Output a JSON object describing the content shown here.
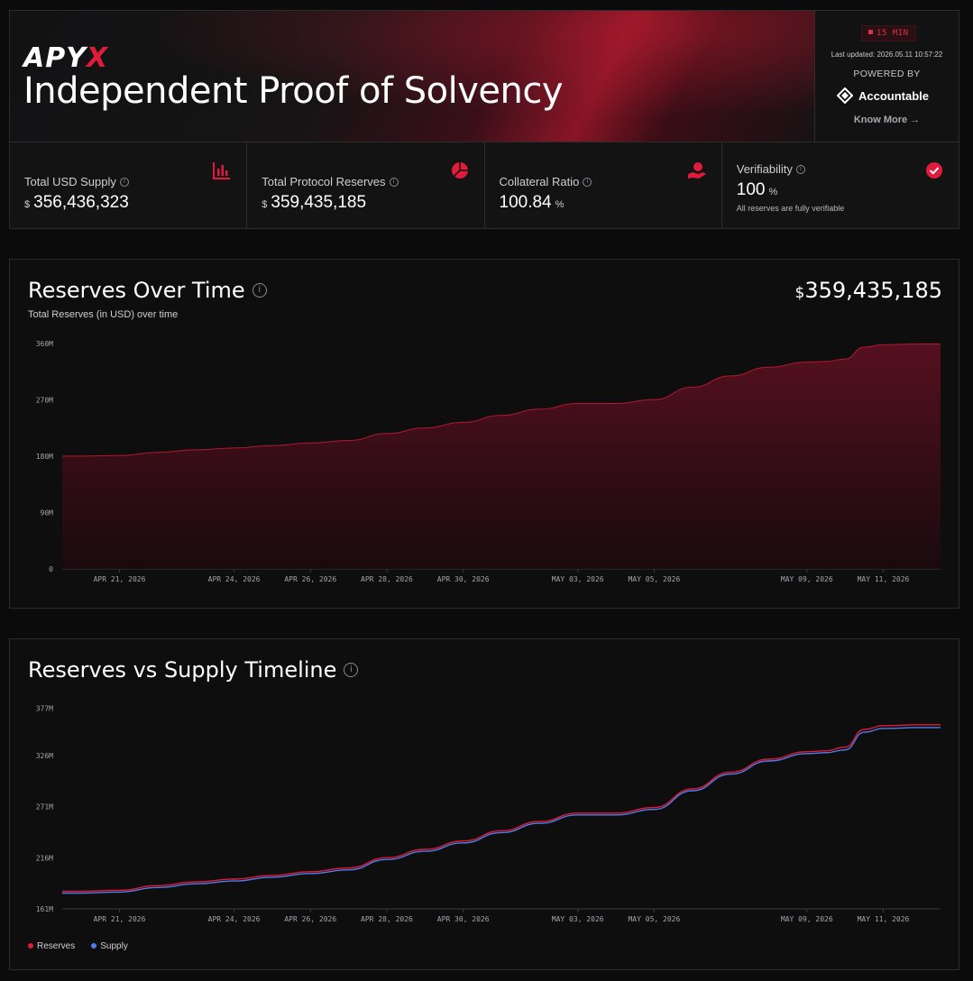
{
  "header": {
    "logo_text_main": "APY",
    "logo_text_accent": "X",
    "title": "Independent Proof of Solvency",
    "badge": "15 MIN",
    "last_updated": "Last updated: 2026.05.11 10:57:22",
    "powered_by": "POWERED BY",
    "partner": "Accountable",
    "know_more": "Know More →",
    "accent_color": "#e01b3c"
  },
  "stats": [
    {
      "label": "Total USD Supply",
      "prefix": "$",
      "value": "356,436,323",
      "suffix": "",
      "icon": "bar-chart-icon"
    },
    {
      "label": "Total Protocol Reserves",
      "prefix": "$",
      "value": "359,435,185",
      "suffix": "",
      "icon": "pie-chart-icon"
    },
    {
      "label": "Collateral Ratio",
      "prefix": "",
      "value": "100.84",
      "suffix": "%",
      "icon": "hand-coin-icon"
    },
    {
      "label": "Verifiability",
      "prefix": "",
      "value": "100",
      "suffix": "%",
      "sub": "All reserves are fully verifiable",
      "icon": "verified-badge-icon"
    }
  ],
  "reserves_card": {
    "title": "Reserves Over Time",
    "subtitle": "Total Reserves (in USD) over time",
    "current_prefix": "$",
    "current_value": "359,435,185"
  },
  "timeline_card": {
    "title": "Reserves vs Supply Timeline",
    "legend": [
      {
        "name": "Reserves",
        "color": "#e01b3c"
      },
      {
        "name": "Supply",
        "color": "#4f7fe6"
      }
    ]
  },
  "chart_data": [
    {
      "type": "area",
      "title": "Reserves Over Time",
      "x_ticks": [
        "APR 21, 2026",
        "APR 24, 2026",
        "APR 26, 2026",
        "APR 28, 2026",
        "APR 30, 2026",
        "MAY 03, 2026",
        "MAY 05, 2026",
        "MAY 09, 2026",
        "MAY 11, 2026"
      ],
      "x_tick_days": [
        21,
        24,
        26,
        28,
        30,
        33,
        35,
        39,
        41
      ],
      "y_ticks": [
        "0",
        "90M",
        "180M",
        "270M",
        "360M"
      ],
      "y_tick_values": [
        0,
        90,
        180,
        270,
        360
      ],
      "ylim": [
        0,
        364
      ],
      "xlim": [
        19.5,
        42.5
      ],
      "series": [
        {
          "name": "Reserves",
          "x": [
            19.5,
            20,
            21,
            22,
            23,
            24,
            25,
            26,
            27,
            28,
            29,
            30,
            31,
            32,
            33,
            34,
            35,
            36,
            37,
            38,
            39,
            39.5,
            40,
            40.5,
            41,
            42,
            42.5
          ],
          "y": [
            180,
            180,
            181,
            186,
            190,
            193,
            197,
            201,
            205,
            216,
            225,
            234,
            245,
            255,
            264,
            264,
            270,
            290,
            308,
            322,
            330,
            331,
            335,
            354,
            358,
            359,
            359
          ]
        }
      ]
    },
    {
      "type": "line",
      "title": "Reserves vs Supply Timeline",
      "x_ticks": [
        "APR 21, 2026",
        "APR 24, 2026",
        "APR 26, 2026",
        "APR 28, 2026",
        "APR 30, 2026",
        "MAY 03, 2026",
        "MAY 05, 2026",
        "MAY 09, 2026",
        "MAY 11, 2026"
      ],
      "x_tick_days": [
        21,
        24,
        26,
        28,
        30,
        33,
        35,
        39,
        41
      ],
      "y_ticks": [
        "161M",
        "216M",
        "271M",
        "326M",
        "377M"
      ],
      "y_tick_values": [
        161,
        216,
        271,
        326,
        377
      ],
      "ylim": [
        161,
        385
      ],
      "xlim": [
        19.5,
        42.5
      ],
      "series": [
        {
          "name": "Reserves",
          "x": [
            19.5,
            20,
            21,
            22,
            23,
            24,
            25,
            26,
            27,
            28,
            29,
            30,
            31,
            32,
            33,
            34,
            35,
            36,
            37,
            38,
            39,
            39.5,
            40,
            40.5,
            41,
            42,
            42.5
          ],
          "y": [
            180,
            180,
            181,
            186,
            190,
            193,
            197,
            201,
            205,
            216,
            225,
            234,
            245,
            255,
            264,
            264,
            270,
            290,
            308,
            322,
            330,
            331,
            335,
            354,
            358,
            359,
            359
          ]
        },
        {
          "name": "Supply",
          "x": [
            19.5,
            20,
            21,
            22,
            23,
            24,
            25,
            26,
            27,
            28,
            29,
            30,
            31,
            32,
            33,
            34,
            35,
            36,
            37,
            38,
            39,
            39.5,
            40,
            40.5,
            41,
            42,
            42.5
          ],
          "y": [
            178,
            178,
            179,
            184,
            188,
            191,
            195,
            199,
            203,
            214,
            223,
            232,
            243,
            253,
            262,
            262,
            268,
            288,
            306,
            320,
            328,
            329,
            332,
            351,
            355,
            356,
            356
          ]
        }
      ]
    }
  ]
}
